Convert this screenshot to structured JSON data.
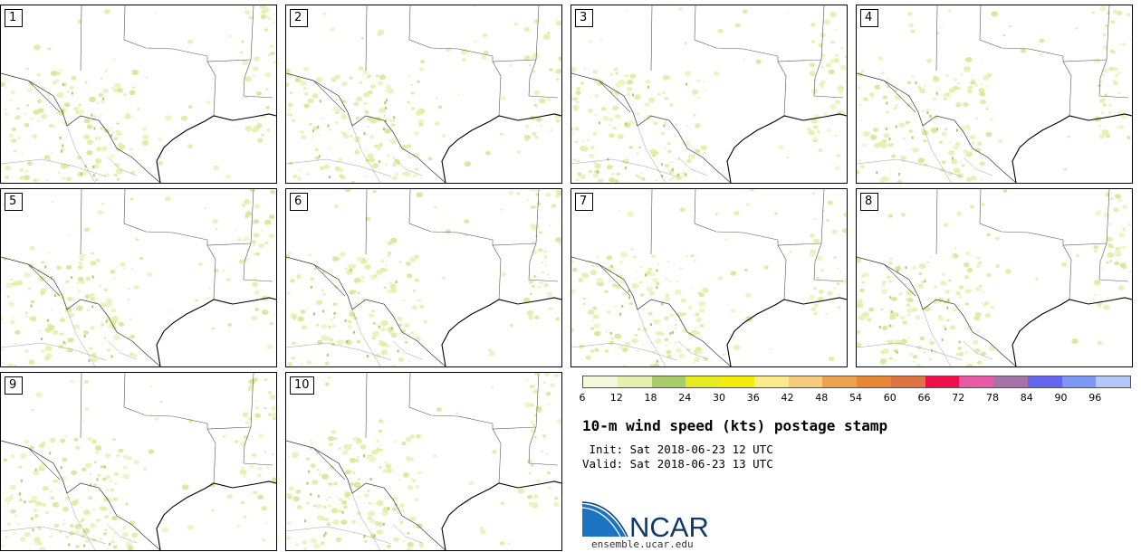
{
  "panels": [
    {
      "label": "1"
    },
    {
      "label": "2"
    },
    {
      "label": "3"
    },
    {
      "label": "4"
    },
    {
      "label": "5"
    },
    {
      "label": "6"
    },
    {
      "label": "7"
    },
    {
      "label": "8"
    },
    {
      "label": "9"
    },
    {
      "label": "10"
    }
  ],
  "colorbar": {
    "colors": [
      "#f5f8dc",
      "#e6f0b0",
      "#a9cd6a",
      "#e6ea22",
      "#f5ec09",
      "#fdea8a",
      "#f6cc7c",
      "#eda24e",
      "#e88837",
      "#dd7441",
      "#ee0e49",
      "#e85aa3",
      "#a474a7",
      "#6465ee",
      "#7e96f5",
      "#b4c6fa"
    ],
    "ticks": [
      "6",
      "12",
      "18",
      "24",
      "30",
      "36",
      "42",
      "48",
      "54",
      "60",
      "66",
      "72",
      "78",
      "84",
      "90",
      "96"
    ]
  },
  "title": "10-m wind speed (kts) postage stamp",
  "init_text": " Init: Sat 2018-06-23 12 UTC",
  "valid_text": "Valid: Sat 2018-06-23 13 UTC",
  "logo": {
    "name": "NCAR",
    "url": "ensemble.ucar.edu",
    "colors": {
      "blue": "#1c73c1",
      "navy": "#0d3a68"
    }
  }
}
